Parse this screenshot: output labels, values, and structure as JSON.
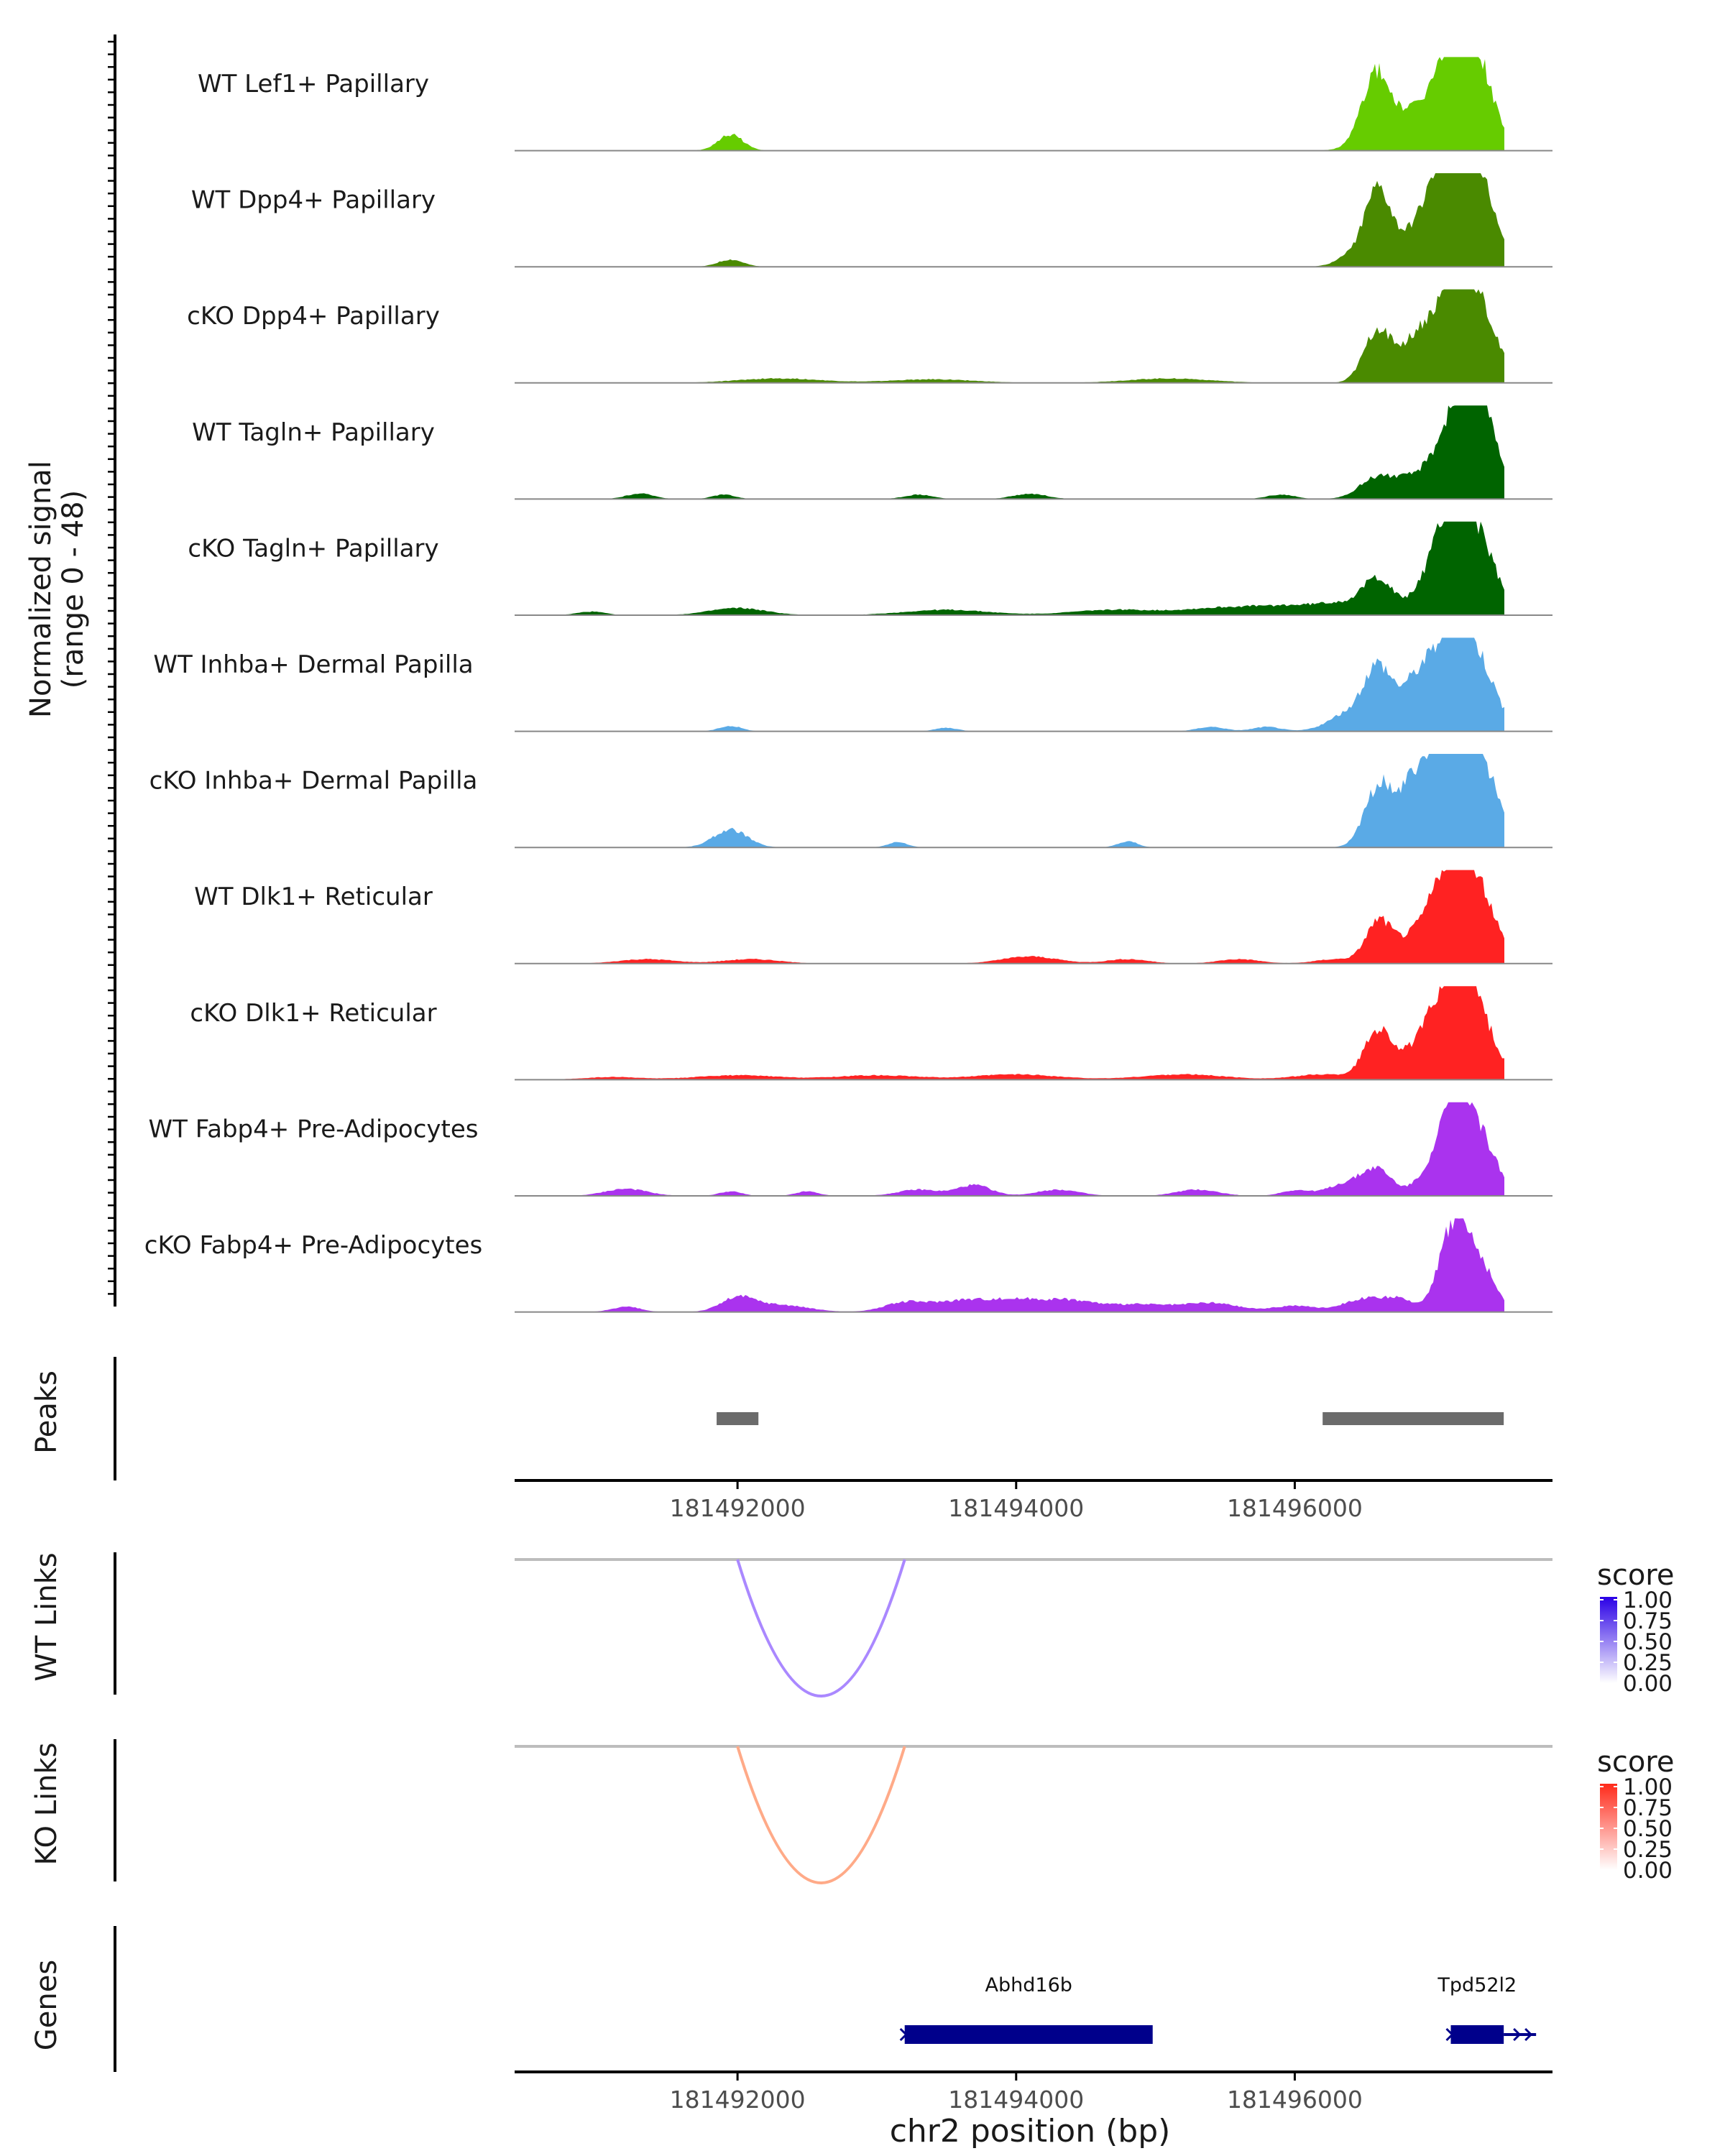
{
  "chart_data": {
    "type": "area",
    "coverage": {
      "ylabel_line1": "Normalized signal",
      "ylabel_line2": "(range 0 - 48)",
      "y_range": [
        0,
        48
      ],
      "x_range": [
        181490400,
        181497850
      ],
      "tracks": [
        {
          "name": "WT Lef1+ Papillary",
          "color": "#66cc00",
          "peaks": [
            [
              181491950,
              0.18,
              90
            ],
            [
              181496570,
              0.55,
              90
            ],
            [
              181496650,
              0.35,
              150
            ],
            [
              181496900,
              0.12,
              180
            ],
            [
              181497200,
              1.0,
              110
            ],
            [
              181497050,
              0.55,
              150
            ],
            [
              181497350,
              0.55,
              120
            ]
          ]
        },
        {
          "name": "WT Dpp4+ Papillary",
          "color": "#4a8a00",
          "peaks": [
            [
              181491950,
              0.08,
              90
            ],
            [
              181496600,
              0.75,
              90
            ],
            [
              181496450,
              0.15,
              120
            ],
            [
              181496900,
              0.2,
              200
            ],
            [
              181497200,
              1.0,
              130
            ],
            [
              181497050,
              0.6,
              160
            ],
            [
              181497350,
              0.5,
              120
            ]
          ]
        },
        {
          "name": "cKO Dpp4+ Papillary",
          "color": "#4a8a00",
          "peaks": [
            [
              181492300,
              0.05,
              300
            ],
            [
              181493400,
              0.04,
              300
            ],
            [
              181495100,
              0.05,
              300
            ],
            [
              181496600,
              0.6,
              100
            ],
            [
              181496850,
              0.25,
              100
            ],
            [
              181497200,
              1.0,
              130
            ],
            [
              181497000,
              0.45,
              140
            ],
            [
              181497380,
              0.4,
              120
            ]
          ]
        },
        {
          "name": "WT Tagln+ Papillary",
          "color": "#006400",
          "peaks": [
            [
              181491300,
              0.06,
              100
            ],
            [
              181491900,
              0.05,
              80
            ],
            [
              181493300,
              0.05,
              100
            ],
            [
              181494100,
              0.06,
              120
            ],
            [
              181495900,
              0.05,
              100
            ],
            [
              181496600,
              0.25,
              130
            ],
            [
              181496850,
              0.15,
              120
            ],
            [
              181497250,
              1.0,
              120
            ],
            [
              181497100,
              0.5,
              140
            ],
            [
              181497400,
              0.45,
              100
            ]
          ]
        },
        {
          "name": "cKO Tagln+ Papillary",
          "color": "#006400",
          "peaks": [
            [
              181490950,
              0.04,
              100
            ],
            [
              181492000,
              0.08,
              200
            ],
            [
              181493500,
              0.06,
              300
            ],
            [
              181494700,
              0.06,
              300
            ],
            [
              181495500,
              0.08,
              300
            ],
            [
              181496000,
              0.08,
              250
            ],
            [
              181496600,
              0.35,
              100
            ],
            [
              181496400,
              0.12,
              200
            ],
            [
              181497200,
              1.0,
              130
            ],
            [
              181497050,
              0.55,
              150
            ],
            [
              181497400,
              0.35,
              100
            ]
          ]
        },
        {
          "name": "WT Inhba+ Dermal Papilla",
          "color": "#5aaae6",
          "peaks": [
            [
              181491950,
              0.06,
              80
            ],
            [
              181493500,
              0.04,
              80
            ],
            [
              181495400,
              0.05,
              100
            ],
            [
              181495800,
              0.05,
              100
            ],
            [
              181496600,
              0.65,
              100
            ],
            [
              181496400,
              0.2,
              150
            ],
            [
              181496850,
              0.25,
              100
            ],
            [
              181497200,
              1.0,
              140
            ],
            [
              181497000,
              0.5,
              160
            ],
            [
              181497400,
              0.25,
              100
            ]
          ]
        },
        {
          "name": "cKO Inhba+ Dermal Papilla",
          "color": "#5aaae6",
          "peaks": [
            [
              181491950,
              0.2,
              120
            ],
            [
              181493150,
              0.06,
              70
            ],
            [
              181494800,
              0.07,
              70
            ],
            [
              181496600,
              0.65,
              100
            ],
            [
              181496850,
              0.4,
              120
            ],
            [
              181497200,
              1.0,
              140
            ],
            [
              181497000,
              0.6,
              160
            ],
            [
              181497400,
              0.45,
              120
            ]
          ]
        },
        {
          "name": "WT Dlk1+ Reticular",
          "color": "#ff2222",
          "peaks": [
            [
              181491350,
              0.05,
              200
            ],
            [
              181492100,
              0.05,
              200
            ],
            [
              181494100,
              0.08,
              200
            ],
            [
              181494800,
              0.05,
              150
            ],
            [
              181495600,
              0.05,
              150
            ],
            [
              181496300,
              0.05,
              150
            ],
            [
              181496600,
              0.45,
              90
            ],
            [
              181496800,
              0.15,
              120
            ],
            [
              181497200,
              1.0,
              130
            ],
            [
              181497050,
              0.55,
              150
            ],
            [
              181497400,
              0.35,
              100
            ]
          ]
        },
        {
          "name": "cKO Dlk1+ Reticular",
          "color": "#ff2222",
          "peaks": [
            [
              181491100,
              0.03,
              200
            ],
            [
              181492000,
              0.05,
              300
            ],
            [
              181493000,
              0.05,
              300
            ],
            [
              181494000,
              0.06,
              300
            ],
            [
              181495200,
              0.06,
              300
            ],
            [
              181496200,
              0.06,
              200
            ],
            [
              181496600,
              0.55,
              100
            ],
            [
              181496850,
              0.15,
              120
            ],
            [
              181497200,
              1.0,
              130
            ],
            [
              181497050,
              0.55,
              150
            ],
            [
              181497400,
              0.25,
              100
            ]
          ]
        },
        {
          "name": "WT Fabp4+ Pre-Adipocytes",
          "color": "#aa33ee",
          "peaks": [
            [
              181491200,
              0.08,
              150
            ],
            [
              181491950,
              0.05,
              80
            ],
            [
              181492500,
              0.05,
              80
            ],
            [
              181493300,
              0.07,
              150
            ],
            [
              181493700,
              0.12,
              120
            ],
            [
              181494300,
              0.07,
              150
            ],
            [
              181495300,
              0.07,
              150
            ],
            [
              181496000,
              0.06,
              100
            ],
            [
              181496400,
              0.15,
              150
            ],
            [
              181496600,
              0.25,
              100
            ],
            [
              181497200,
              1.0,
              120
            ],
            [
              181497050,
              0.35,
              140
            ],
            [
              181497400,
              0.3,
              100
            ]
          ]
        },
        {
          "name": "cKO Fabp4+ Pre-Adipocytes",
          "color": "#aa33ee",
          "peaks": [
            [
              181491200,
              0.06,
              100
            ],
            [
              181492000,
              0.15,
              120
            ],
            [
              181492300,
              0.08,
              200
            ],
            [
              181493200,
              0.1,
              150
            ],
            [
              181493600,
              0.12,
              200
            ],
            [
              181494000,
              0.12,
              200
            ],
            [
              181494400,
              0.12,
              200
            ],
            [
              181494900,
              0.08,
              200
            ],
            [
              181495400,
              0.1,
              200
            ],
            [
              181496000,
              0.07,
              150
            ],
            [
              181496500,
              0.15,
              150
            ],
            [
              181496750,
              0.12,
              100
            ],
            [
              181497150,
              1.0,
              110
            ],
            [
              181497350,
              0.4,
              100
            ]
          ]
        }
      ]
    },
    "peaks_track": {
      "label": "Peaks",
      "color": "#6b6b6b",
      "regions": [
        [
          181491850,
          181492150
        ],
        [
          181496200,
          181497500
        ]
      ]
    },
    "x_axis": {
      "ticks": [
        181492000,
        181494000,
        181496000
      ],
      "tick_labels": [
        "181492000",
        "181494000",
        "181496000"
      ],
      "xlabel": "chr2 position (bp)"
    },
    "links": [
      {
        "label": "WT Links",
        "start": 181492000,
        "end": 181493200,
        "score": 0.5,
        "legend_title": "score",
        "legend_color": "#2a00e6",
        "legend_ticks": [
          "1.00",
          "0.75",
          "0.50",
          "0.25",
          "0.00"
        ]
      },
      {
        "label": "KO Links",
        "start": 181492000,
        "end": 181493200,
        "score": 0.5,
        "legend_title": "score",
        "legend_color": "#ff2a1a",
        "legend_ticks": [
          "1.00",
          "0.75",
          "0.50",
          "0.25",
          "0.00"
        ]
      }
    ],
    "genes": {
      "label": "Genes",
      "color": "#00008b",
      "items": [
        {
          "name": "Abhd16b",
          "start": 181493200,
          "end": 181494980
        },
        {
          "name": "Tpd52l2",
          "start": 181497120,
          "end": 181497500
        }
      ]
    }
  }
}
